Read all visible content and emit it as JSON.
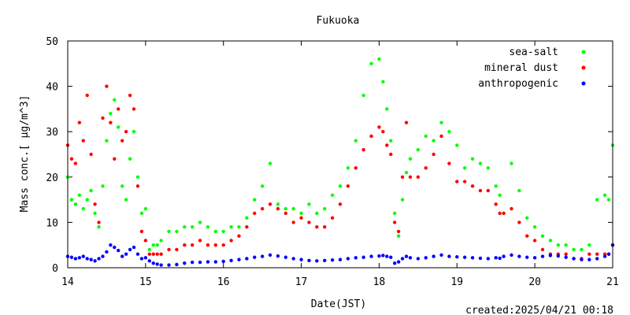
{
  "chart_data": {
    "type": "scatter",
    "title": "Fukuoka",
    "xlabel": "Date(JST)",
    "ylabel": "Mass conc.[ μg/m^3]",
    "xlim": [
      14,
      21
    ],
    "ylim": [
      0,
      50
    ],
    "x_ticks": [
      "14",
      "15",
      "16",
      "17",
      "18",
      "19",
      "20",
      "21"
    ],
    "y_ticks": [
      "0",
      "10",
      "20",
      "30",
      "40",
      "50"
    ],
    "grid": false,
    "legend_position": "top-right",
    "footer": "created:2025/04/21 00:18",
    "colors": {
      "sea-salt": "#00ff00",
      "mineral dust": "#ff0000",
      "anthropogenic": "#0000ff"
    },
    "series": [
      {
        "name": "sea-salt",
        "color": "#00ff00",
        "x": [
          14.0,
          14.05,
          14.1,
          14.15,
          14.2,
          14.25,
          14.3,
          14.35,
          14.4,
          14.45,
          14.5,
          14.55,
          14.6,
          14.65,
          14.7,
          14.75,
          14.8,
          14.85,
          14.9,
          14.95,
          15.0,
          15.05,
          15.1,
          15.15,
          15.2,
          15.3,
          15.4,
          15.5,
          15.6,
          15.7,
          15.8,
          15.9,
          16.0,
          16.1,
          16.2,
          16.3,
          16.4,
          16.5,
          16.6,
          16.7,
          16.8,
          16.9,
          17.0,
          17.1,
          17.2,
          17.3,
          17.4,
          17.5,
          17.6,
          17.7,
          17.8,
          17.9,
          18.0,
          18.05,
          18.1,
          18.15,
          18.2,
          18.25,
          18.3,
          18.35,
          18.4,
          18.5,
          18.6,
          18.7,
          18.8,
          18.9,
          19.0,
          19.1,
          19.2,
          19.3,
          19.4,
          19.5,
          19.55,
          19.6,
          19.7,
          19.8,
          19.9,
          20.0,
          20.1,
          20.2,
          20.3,
          20.4,
          20.5,
          20.6,
          20.7,
          20.8,
          20.9,
          20.95,
          21.0
        ],
        "y": [
          20,
          15,
          14,
          16,
          13,
          15,
          17,
          12,
          9,
          18,
          28,
          34,
          37,
          31,
          18,
          15,
          24,
          30,
          20,
          12,
          13,
          4,
          5,
          5,
          6,
          8,
          8,
          9,
          9,
          10,
          9,
          8,
          8,
          9,
          9,
          11,
          15,
          18,
          23,
          14,
          13,
          13,
          12,
          14,
          12,
          13,
          16,
          18,
          22,
          28,
          38,
          45,
          46,
          41,
          35,
          28,
          12,
          7,
          15,
          21,
          24,
          26,
          29,
          28,
          32,
          30,
          27,
          22,
          24,
          23,
          22,
          18,
          16,
          12,
          23,
          17,
          11,
          9,
          7,
          6,
          5,
          5,
          4,
          4,
          5,
          15,
          16,
          15,
          27
        ]
      },
      {
        "name": "mineral dust",
        "color": "#ff0000",
        "x": [
          14.0,
          14.05,
          14.1,
          14.15,
          14.2,
          14.25,
          14.3,
          14.35,
          14.4,
          14.45,
          14.5,
          14.55,
          14.6,
          14.65,
          14.7,
          14.75,
          14.8,
          14.85,
          14.9,
          14.95,
          15.0,
          15.05,
          15.1,
          15.15,
          15.2,
          15.3,
          15.4,
          15.5,
          15.6,
          15.7,
          15.8,
          15.9,
          16.0,
          16.1,
          16.2,
          16.3,
          16.4,
          16.5,
          16.6,
          16.7,
          16.8,
          16.9,
          17.0,
          17.1,
          17.2,
          17.3,
          17.4,
          17.5,
          17.6,
          17.7,
          17.8,
          17.9,
          18.0,
          18.05,
          18.1,
          18.15,
          18.2,
          18.25,
          18.3,
          18.35,
          18.4,
          18.5,
          18.6,
          18.7,
          18.8,
          18.9,
          19.0,
          19.1,
          19.2,
          19.3,
          19.4,
          19.5,
          19.55,
          19.6,
          19.7,
          19.8,
          19.9,
          20.0,
          20.1,
          20.2,
          20.3,
          20.4,
          20.5,
          20.6,
          20.7,
          20.8,
          20.9,
          20.95,
          21.0
        ],
        "y": [
          27,
          24,
          23,
          32,
          28,
          38,
          25,
          14,
          10,
          33,
          40,
          32,
          24,
          35,
          28,
          30,
          38,
          35,
          18,
          8,
          6,
          3,
          3,
          3,
          3,
          4,
          4,
          5,
          5,
          6,
          5,
          5,
          5,
          6,
          7,
          9,
          12,
          13,
          14,
          13,
          12,
          10,
          11,
          10,
          9,
          9,
          11,
          14,
          18,
          22,
          26,
          29,
          31,
          30,
          27,
          25,
          10,
          8,
          20,
          32,
          20,
          20,
          22,
          25,
          29,
          23,
          19,
          19,
          18,
          17,
          17,
          14,
          12,
          12,
          13,
          10,
          7,
          6,
          4,
          3,
          3,
          3,
          2,
          2,
          3,
          3,
          3,
          3,
          5
        ]
      },
      {
        "name": "anthropogenic",
        "color": "#0000ff",
        "x": [
          14.0,
          14.05,
          14.1,
          14.15,
          14.2,
          14.25,
          14.3,
          14.35,
          14.4,
          14.45,
          14.5,
          14.55,
          14.6,
          14.65,
          14.7,
          14.75,
          14.8,
          14.85,
          14.9,
          14.95,
          15.0,
          15.05,
          15.1,
          15.15,
          15.2,
          15.3,
          15.4,
          15.5,
          15.6,
          15.7,
          15.8,
          15.9,
          16.0,
          16.1,
          16.2,
          16.3,
          16.4,
          16.5,
          16.6,
          16.7,
          16.8,
          16.9,
          17.0,
          17.1,
          17.2,
          17.3,
          17.4,
          17.5,
          17.6,
          17.7,
          17.8,
          17.9,
          18.0,
          18.05,
          18.1,
          18.15,
          18.2,
          18.25,
          18.3,
          18.35,
          18.4,
          18.5,
          18.6,
          18.7,
          18.8,
          18.9,
          19.0,
          19.1,
          19.2,
          19.3,
          19.4,
          19.5,
          19.55,
          19.6,
          19.7,
          19.8,
          19.9,
          20.0,
          20.1,
          20.2,
          20.3,
          20.4,
          20.5,
          20.6,
          20.7,
          20.8,
          20.9,
          20.95,
          21.0
        ],
        "y": [
          2.5,
          2.3,
          2.0,
          2.2,
          2.5,
          2.0,
          1.8,
          1.5,
          2.0,
          2.5,
          3.5,
          5.0,
          4.5,
          3.8,
          2.5,
          3.0,
          4.0,
          4.5,
          3.0,
          2.0,
          2.2,
          1.5,
          1.0,
          0.8,
          0.6,
          0.6,
          0.7,
          1.0,
          1.2,
          1.2,
          1.3,
          1.3,
          1.4,
          1.6,
          1.8,
          2.0,
          2.3,
          2.5,
          2.8,
          2.6,
          2.3,
          2.0,
          1.8,
          1.6,
          1.5,
          1.6,
          1.7,
          1.8,
          2.0,
          2.2,
          2.3,
          2.5,
          2.6,
          2.7,
          2.5,
          2.3,
          1.0,
          1.3,
          2.0,
          2.5,
          2.2,
          2.0,
          2.2,
          2.5,
          2.8,
          2.5,
          2.4,
          2.3,
          2.2,
          2.1,
          2.0,
          2.2,
          2.1,
          2.5,
          2.8,
          2.5,
          2.3,
          2.2,
          2.5,
          2.7,
          2.6,
          2.3,
          2.0,
          1.8,
          1.8,
          2.0,
          2.5,
          3.0,
          5.0
        ]
      }
    ]
  }
}
